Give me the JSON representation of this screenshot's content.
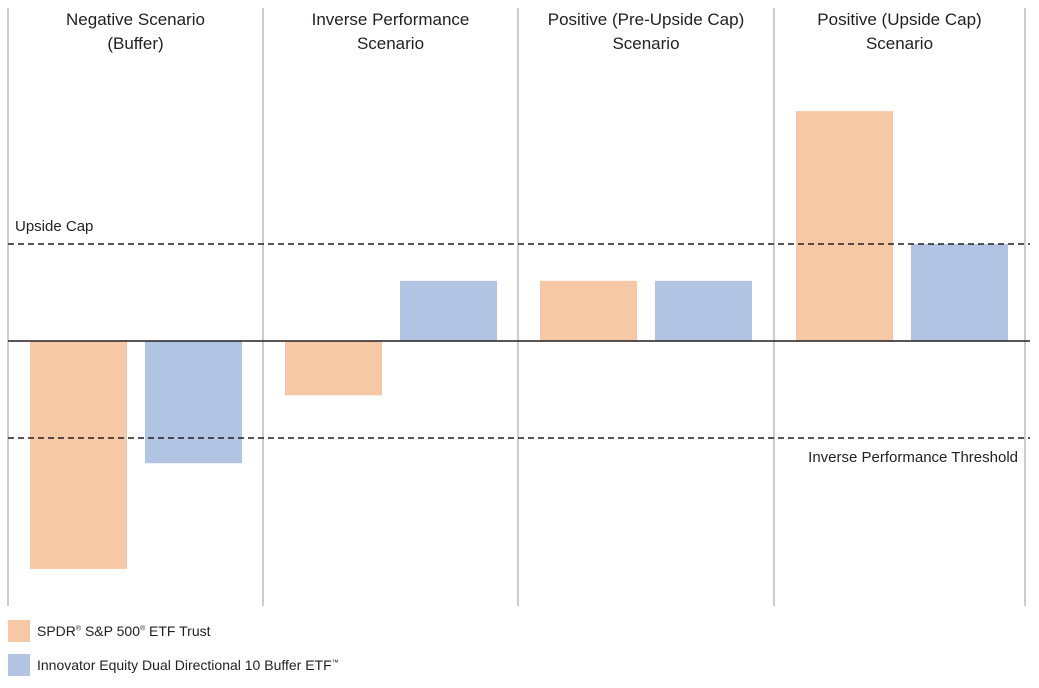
{
  "chart_data": {
    "type": "bar",
    "categories": [
      [
        "Negative Scenario",
        "(Buffer)"
      ],
      [
        "Inverse Performance",
        "Scenario"
      ],
      [
        "Positive (Pre-Upside Cap)",
        "Scenario"
      ],
      [
        "Positive (Upside Cap)",
        "Scenario"
      ]
    ],
    "series": [
      {
        "name": "SPDR® S&P 500® ETF Trust",
        "color": "#f7c8a6",
        "values": [
          -23.5,
          -5.6,
          6.2,
          23.7
        ]
      },
      {
        "name": "Innovator Equity Dual Directional 10 Buffer ETF™",
        "color": "#b1c4e3",
        "values": [
          -12.6,
          6.2,
          6.2,
          10.0
        ]
      }
    ],
    "reference_lines": [
      {
        "label": "Upside Cap",
        "value": 10.0,
        "style": "dashed"
      },
      {
        "label": "Inverse Performance Threshold",
        "value": -10.0,
        "style": "dashed"
      }
    ],
    "baseline": 0,
    "ylim": [
      -27.5,
      34.0
    ],
    "axis_numbers_shown": false,
    "grid": false
  },
  "legend": {
    "items": [
      {
        "name_parts": [
          "SPDR",
          "®",
          " S&P 500",
          "®",
          " ETF Trust"
        ],
        "color": "#f7c8a6"
      },
      {
        "name_parts": [
          "Innovator Equity Dual Directional 10 Buffer ETF",
          "™",
          "",
          "",
          ""
        ],
        "color": "#b1c4e3"
      }
    ]
  },
  "colors": {
    "spdr": "#f7c8a6",
    "innovator": "#b1c4e3",
    "divider": "#b0b0b0",
    "line": "#231f20"
  }
}
